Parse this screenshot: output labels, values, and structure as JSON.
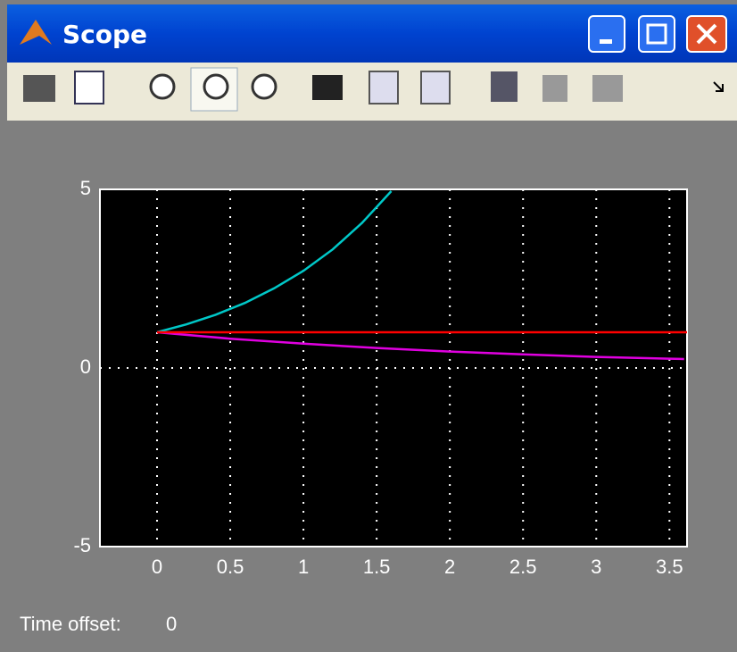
{
  "window": {
    "title": "Scope"
  },
  "chart_data": {
    "type": "line",
    "series": [
      {
        "color": "#00c8c8",
        "x": [
          0,
          0.2,
          0.4,
          0.6,
          0.8,
          1.0,
          1.2,
          1.4,
          1.6
        ],
        "values": [
          1,
          1.22,
          1.49,
          1.82,
          2.23,
          2.72,
          3.32,
          4.06,
          4.95
        ]
      },
      {
        "color": "#e000e0",
        "x": [
          0,
          0.5,
          1.0,
          1.5,
          2.0,
          2.5,
          3.0,
          3.5,
          3.6
        ],
        "values": [
          1,
          0.82,
          0.68,
          0.56,
          0.46,
          0.38,
          0.31,
          0.26,
          0.25
        ]
      },
      {
        "color": "#ff0000",
        "x": [
          0,
          3.62
        ],
        "values": [
          1,
          1
        ]
      }
    ],
    "xlim": [
      -0.39,
      3.62
    ],
    "ylim": [
      -5,
      5
    ],
    "xticks": [
      0,
      0.5,
      1,
      1.5,
      2,
      2.5,
      3,
      3.5
    ],
    "yticks": [
      -5,
      0,
      5
    ],
    "grid": true
  },
  "status": {
    "label": "Time offset:",
    "value": "0"
  }
}
